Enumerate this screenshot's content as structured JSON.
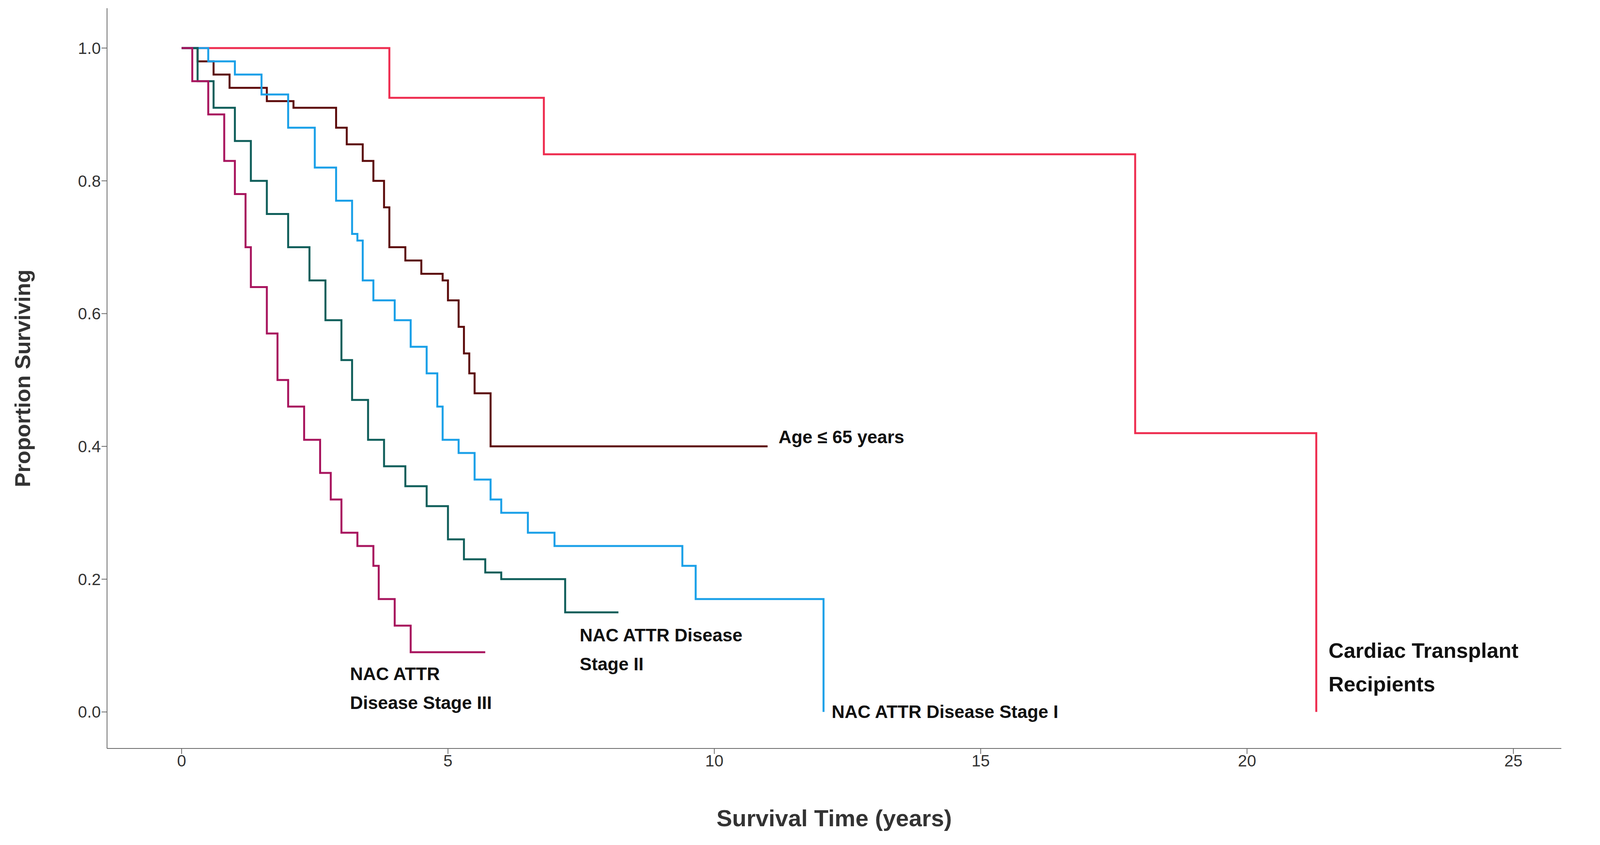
{
  "chart_data": {
    "type": "line",
    "x_label": "Survival Time (years)",
    "y_label": "Proportion Surviving",
    "xlim": [
      -1.4,
      25.9
    ],
    "ylim": [
      -0.055,
      1.06
    ],
    "xticks": [
      0,
      5,
      10,
      15,
      20,
      25
    ],
    "yticks": [
      {
        "value": 0,
        "label": "0.0"
      },
      {
        "value": 0.2,
        "label": "0.2"
      },
      {
        "value": 0.4,
        "label": "0.4"
      },
      {
        "value": 0.6,
        "label": "0.6"
      },
      {
        "value": 0.8,
        "label": "0.8"
      },
      {
        "value": 1,
        "label": "1.0"
      }
    ],
    "grid": false,
    "series": [
      {
        "name": "Cardiac Transplant Recipients",
        "color": "#ee2c4f",
        "line_style": "step",
        "x": [
          0,
          3.9,
          6.8,
          17.9,
          21.3
        ],
        "values": [
          1,
          0.925,
          0.84,
          0.42,
          0
        ]
      },
      {
        "name": "Age ≤ 65 years",
        "color": "#5c0a0a",
        "line_style": "step",
        "x": [
          0,
          0.3,
          0.6,
          0.9,
          1.6,
          2.1,
          2.9,
          3.1,
          3.4,
          3.6,
          3.8,
          3.9,
          4.2,
          4.5,
          4.9,
          5.0,
          5.2,
          5.3,
          5.4,
          5.5,
          5.8,
          11.0
        ],
        "values": [
          1,
          0.98,
          0.96,
          0.94,
          0.92,
          0.91,
          0.88,
          0.855,
          0.83,
          0.8,
          0.76,
          0.7,
          0.68,
          0.66,
          0.65,
          0.62,
          0.58,
          0.54,
          0.51,
          0.48,
          0.4,
          0.4
        ]
      },
      {
        "name": "NAC ATTR Disease Stage I",
        "color": "#1aa0e8",
        "line_style": "step",
        "x": [
          0,
          0.5,
          1.0,
          1.5,
          2.0,
          2.5,
          2.9,
          3.2,
          3.3,
          3.4,
          3.6,
          4.0,
          4.3,
          4.6,
          4.8,
          4.9,
          5.2,
          5.5,
          5.8,
          6.0,
          6.5,
          7.0,
          9.4,
          9.65,
          12.05
        ],
        "values": [
          1,
          0.98,
          0.96,
          0.93,
          0.88,
          0.82,
          0.77,
          0.72,
          0.71,
          0.65,
          0.62,
          0.59,
          0.55,
          0.51,
          0.46,
          0.41,
          0.39,
          0.35,
          0.32,
          0.3,
          0.27,
          0.25,
          0.22,
          0.17,
          0
        ]
      },
      {
        "name": "NAC ATTR Disease Stage II",
        "color": "#0f5e5a",
        "line_style": "step",
        "x": [
          0,
          0.3,
          0.6,
          1.0,
          1.3,
          1.6,
          2.0,
          2.4,
          2.7,
          3.0,
          3.2,
          3.5,
          3.8,
          4.2,
          4.6,
          5.0,
          5.3,
          5.7,
          6.0,
          7.2,
          8.2
        ],
        "values": [
          1,
          0.95,
          0.91,
          0.86,
          0.8,
          0.75,
          0.7,
          0.65,
          0.59,
          0.53,
          0.47,
          0.41,
          0.37,
          0.34,
          0.31,
          0.26,
          0.23,
          0.21,
          0.2,
          0.15,
          0.15
        ]
      },
      {
        "name": "NAC ATTR Disease Stage III",
        "color": "#a8155e",
        "line_style": "step",
        "x": [
          0,
          0.2,
          0.5,
          0.8,
          1.0,
          1.2,
          1.3,
          1.6,
          1.8,
          2.0,
          2.3,
          2.6,
          2.8,
          3.0,
          3.3,
          3.6,
          3.7,
          4.0,
          4.3,
          5.7
        ],
        "values": [
          1,
          0.95,
          0.9,
          0.83,
          0.78,
          0.7,
          0.64,
          0.57,
          0.5,
          0.46,
          0.41,
          0.36,
          0.32,
          0.27,
          0.25,
          0.22,
          0.17,
          0.13,
          0.09,
          0.09
        ]
      }
    ]
  }
}
